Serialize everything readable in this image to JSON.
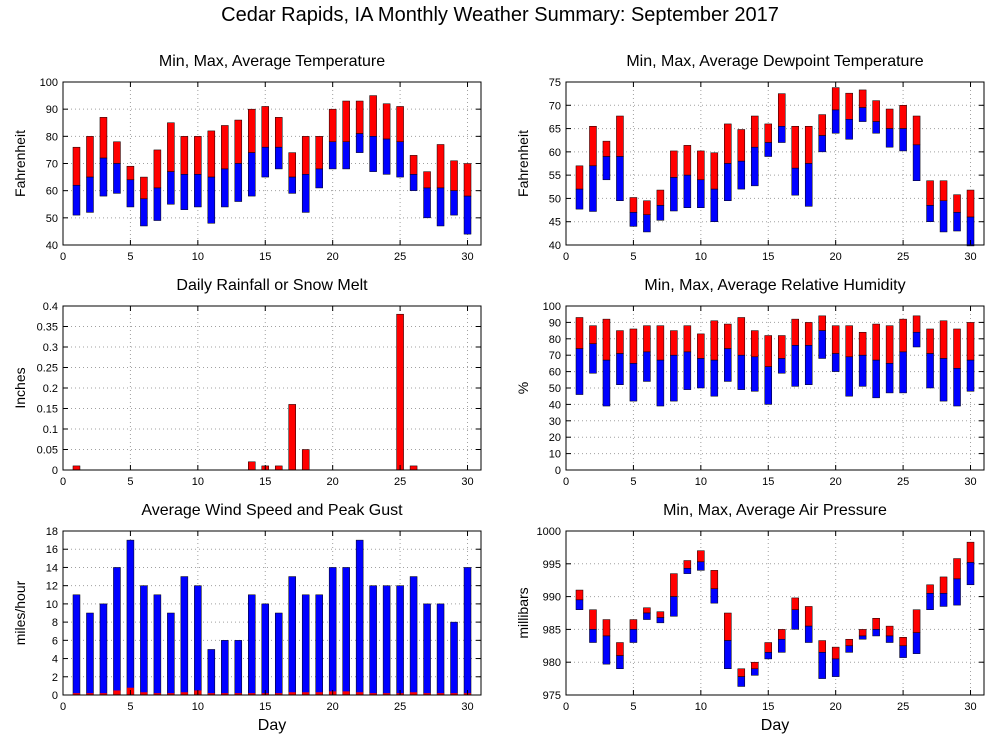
{
  "page": {
    "title": "Cedar Rapids, IA Monthly Weather Summary: September 2017"
  },
  "colors": {
    "max": "#ff0000",
    "min": "#0000ff",
    "frame": "#000000",
    "grid": "#a0a0a0"
  },
  "chart_data": [
    {
      "id": "temp",
      "type": "bar",
      "title": "Min, Max, Average Temperature",
      "xlabel": "",
      "ylabel": "Fahrenheit",
      "xlim": [
        0,
        31
      ],
      "ylim": [
        40,
        100
      ],
      "xticks": [
        0,
        5,
        10,
        15,
        20,
        25,
        30
      ],
      "yticks": [
        40,
        50,
        60,
        70,
        80,
        90,
        100
      ],
      "grid": true,
      "x": [
        1,
        2,
        3,
        4,
        5,
        6,
        7,
        8,
        9,
        10,
        11,
        12,
        13,
        14,
        15,
        16,
        17,
        18,
        19,
        20,
        21,
        22,
        23,
        24,
        25,
        26,
        27,
        28,
        29,
        30
      ],
      "series": [
        {
          "role": "max",
          "values": [
            76,
            80,
            87,
            78,
            69,
            65,
            75,
            85,
            80,
            80,
            82,
            84,
            86,
            90,
            91,
            87,
            74,
            80,
            80,
            90,
            93,
            93,
            95,
            92,
            91,
            73,
            67,
            77,
            71,
            70
          ]
        },
        {
          "role": "avg",
          "values": [
            62,
            65,
            72,
            70,
            64,
            57,
            61,
            67,
            66,
            66,
            65,
            68,
            70,
            74,
            76,
            76,
            65,
            66,
            68,
            78,
            78,
            81,
            80,
            79,
            78,
            66,
            61,
            61,
            60,
            58
          ]
        },
        {
          "role": "min",
          "values": [
            51,
            52,
            58,
            59,
            54,
            47,
            49,
            55,
            53,
            54,
            48,
            54,
            56,
            58,
            65,
            68,
            59,
            52,
            61,
            68,
            68,
            74,
            67,
            66,
            65,
            60,
            50,
            47,
            51,
            44
          ]
        }
      ]
    },
    {
      "id": "dewpoint",
      "type": "bar",
      "title": "Min, Max, Average Dewpoint Temperature",
      "xlabel": "",
      "ylabel": "Fahrenheit",
      "xlim": [
        0,
        31
      ],
      "ylim": [
        40,
        75
      ],
      "xticks": [
        0,
        5,
        10,
        15,
        20,
        25,
        30
      ],
      "yticks": [
        40,
        45,
        50,
        55,
        60,
        65,
        70,
        75
      ],
      "grid": true,
      "x": [
        1,
        2,
        3,
        4,
        5,
        6,
        7,
        8,
        9,
        10,
        11,
        12,
        13,
        14,
        15,
        16,
        17,
        18,
        19,
        20,
        21,
        22,
        23,
        24,
        25,
        26,
        27,
        28,
        29,
        30
      ],
      "series": [
        {
          "role": "max",
          "values": [
            57,
            65.5,
            62.3,
            67.7,
            50.2,
            49.5,
            51.8,
            60.2,
            61.4,
            60.2,
            59.8,
            66,
            64.8,
            67.7,
            66,
            72.5,
            65.5,
            65.5,
            68,
            73.8,
            72.6,
            73.3,
            71,
            69.2,
            70,
            67.7,
            53.8,
            53.8,
            50.8,
            51.8
          ]
        },
        {
          "role": "avg",
          "values": [
            52,
            57,
            59,
            59,
            47,
            46.5,
            48.5,
            54.5,
            55,
            54,
            52,
            57.5,
            58,
            61,
            62,
            65.5,
            56.5,
            57.5,
            63.5,
            69,
            67,
            69.5,
            66.5,
            65,
            65,
            61.5,
            48.5,
            49.5,
            47,
            46
          ]
        },
        {
          "role": "min",
          "values": [
            47.7,
            47.2,
            54,
            49.5,
            44,
            42.8,
            45.3,
            47.3,
            48,
            48,
            45,
            49.5,
            52,
            52.7,
            59,
            62,
            50.7,
            48.3,
            60,
            64,
            62.7,
            66.5,
            64,
            61,
            60.2,
            53.8,
            45,
            42.8,
            43,
            39.8
          ]
        }
      ]
    },
    {
      "id": "rain",
      "type": "bar",
      "title": "Daily Rainfall or Snow Melt",
      "xlabel": "",
      "ylabel": "Inches",
      "xlim": [
        0,
        31
      ],
      "ylim": [
        0,
        0.4
      ],
      "xticks": [
        0,
        5,
        10,
        15,
        20,
        25,
        30
      ],
      "yticks": [
        0,
        0.05,
        0.1,
        0.15,
        0.2,
        0.25,
        0.3,
        0.35,
        0.4
      ],
      "grid": true,
      "x": [
        1,
        2,
        3,
        4,
        5,
        6,
        7,
        8,
        9,
        10,
        11,
        12,
        13,
        14,
        15,
        16,
        17,
        18,
        19,
        20,
        21,
        22,
        23,
        24,
        25,
        26,
        27,
        28,
        29,
        30
      ],
      "series": [
        {
          "role": "rain",
          "values": [
            0.01,
            0,
            0,
            0,
            0,
            0,
            0,
            0,
            0,
            0,
            0,
            0,
            0,
            0.02,
            0.01,
            0.01,
            0.16,
            0.05,
            0,
            0,
            0,
            0,
            0,
            0,
            0.38,
            0.01,
            0,
            0,
            0,
            0
          ]
        }
      ]
    },
    {
      "id": "humidity",
      "type": "bar",
      "title": "Min, Max, Average Relative Humidity",
      "xlabel": "",
      "ylabel": "%",
      "xlim": [
        0,
        31
      ],
      "ylim": [
        0,
        100
      ],
      "xticks": [
        0,
        5,
        10,
        15,
        20,
        25,
        30
      ],
      "yticks": [
        0,
        10,
        20,
        30,
        40,
        50,
        60,
        70,
        80,
        90,
        100
      ],
      "grid": true,
      "x": [
        1,
        2,
        3,
        4,
        5,
        6,
        7,
        8,
        9,
        10,
        11,
        12,
        13,
        14,
        15,
        16,
        17,
        18,
        19,
        20,
        21,
        22,
        23,
        24,
        25,
        26,
        27,
        28,
        29,
        30
      ],
      "series": [
        {
          "role": "max",
          "values": [
            93,
            88,
            92,
            85,
            86,
            88,
            88,
            85,
            88,
            83,
            91,
            89,
            93,
            85,
            82,
            82,
            92,
            90,
            94,
            88,
            88,
            84,
            89,
            88,
            92,
            94,
            86,
            91,
            86,
            90
          ]
        },
        {
          "role": "avg",
          "values": [
            74,
            77,
            67,
            71,
            65,
            72,
            67,
            70,
            72,
            68,
            67,
            74,
            70,
            69,
            63,
            68,
            76,
            76,
            85,
            71,
            69,
            70,
            67,
            65,
            72,
            84,
            71,
            68,
            62,
            67
          ]
        },
        {
          "role": "min",
          "values": [
            46,
            59,
            39,
            52,
            42,
            54,
            39,
            42,
            49,
            50,
            45,
            54,
            49,
            48,
            40,
            59,
            51,
            52,
            68,
            60,
            45,
            51,
            44,
            47,
            47,
            75,
            50,
            42,
            39,
            48
          ]
        }
      ]
    },
    {
      "id": "wind",
      "type": "bar",
      "title": "Average Wind Speed and Peak Gust",
      "xlabel": "Day",
      "ylabel": "miles/hour",
      "xlim": [
        0,
        31
      ],
      "ylim": [
        0,
        18
      ],
      "xticks": [
        0,
        5,
        10,
        15,
        20,
        25,
        30
      ],
      "yticks": [
        0,
        2,
        4,
        6,
        8,
        10,
        12,
        14,
        16,
        18
      ],
      "grid": true,
      "x": [
        1,
        2,
        3,
        4,
        5,
        6,
        7,
        8,
        9,
        10,
        11,
        12,
        13,
        14,
        15,
        16,
        17,
        18,
        19,
        20,
        21,
        22,
        23,
        24,
        25,
        26,
        27,
        28,
        29,
        30
      ],
      "series": [
        {
          "role": "gust",
          "values": [
            0.2,
            0.2,
            0.2,
            0.5,
            0.8,
            0.3,
            0.2,
            0.2,
            0.3,
            0.5,
            0.2,
            0.2,
            0.2,
            0.2,
            0.2,
            0.2,
            0.3,
            0.3,
            0.3,
            0.4,
            0.4,
            0.3,
            0.2,
            0.2,
            0.2,
            0.3,
            0.2,
            0.2,
            0.2,
            0.2
          ]
        },
        {
          "role": "avg",
          "values": [
            11,
            9,
            10,
            14,
            17,
            12,
            11,
            9,
            13,
            12,
            5,
            6,
            6,
            11,
            10,
            9,
            13,
            11,
            11,
            14,
            14,
            17,
            12,
            12,
            12,
            13,
            10,
            10,
            8,
            14
          ]
        }
      ]
    },
    {
      "id": "pressure",
      "type": "bar",
      "title": "Min, Max, Average Air Pressure",
      "xlabel": "Day",
      "ylabel": "millibars",
      "xlim": [
        0,
        31
      ],
      "ylim": [
        975,
        1000
      ],
      "xticks": [
        0,
        5,
        10,
        15,
        20,
        25,
        30
      ],
      "yticks": [
        975,
        980,
        985,
        990,
        995,
        1000
      ],
      "grid": true,
      "x": [
        1,
        2,
        3,
        4,
        5,
        6,
        7,
        8,
        9,
        10,
        11,
        12,
        13,
        14,
        15,
        16,
        17,
        18,
        19,
        20,
        21,
        22,
        23,
        24,
        25,
        26,
        27,
        28,
        29,
        30
      ],
      "series": [
        {
          "role": "max",
          "values": [
            991,
            988,
            986.5,
            983,
            986.5,
            988.3,
            987.7,
            993.5,
            995.5,
            997,
            994,
            987.5,
            979,
            980,
            983,
            985,
            989.8,
            988.5,
            983.3,
            982.3,
            983.5,
            985,
            986.7,
            985.5,
            983.8,
            988,
            991.8,
            993,
            995.8,
            998.3
          ]
        },
        {
          "role": "avg",
          "values": [
            989.5,
            985,
            984,
            981,
            985,
            987.5,
            986.8,
            990,
            994.3,
            995.3,
            991.2,
            983.3,
            977.8,
            979,
            981.5,
            983.5,
            988,
            985.5,
            981.5,
            980.5,
            982.5,
            984,
            985,
            984,
            982.5,
            984.5,
            990.5,
            990.5,
            992.7,
            995.2
          ]
        },
        {
          "role": "min",
          "values": [
            988,
            983,
            979.7,
            979,
            983,
            986.5,
            986,
            987,
            993.5,
            994,
            989,
            979,
            976.3,
            978,
            980.5,
            981.5,
            985,
            983,
            977.5,
            977.8,
            981.5,
            983.5,
            984,
            983,
            980.7,
            981.3,
            988,
            988.5,
            988.7,
            991.8
          ]
        }
      ]
    }
  ]
}
